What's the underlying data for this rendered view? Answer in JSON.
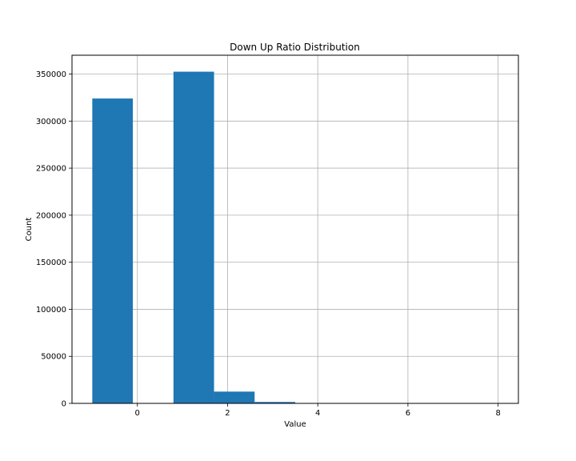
{
  "chart_data": {
    "type": "bar",
    "title": "Down Up Ratio Distribution",
    "xlabel": "Value",
    "ylabel": "Count",
    "xlim": [
      -1.45,
      8.45
    ],
    "ylim": [
      0,
      370000
    ],
    "x_ticks": [
      0,
      2,
      4,
      6,
      8
    ],
    "y_ticks": [
      0,
      50000,
      100000,
      150000,
      200000,
      250000,
      300000,
      350000
    ],
    "grid": true,
    "bar_color": "#1f77b4",
    "bins": [
      {
        "x_start": -1.0,
        "x_end": -0.1,
        "value": 324000
      },
      {
        "x_start": -0.1,
        "x_end": 0.8,
        "value": 0
      },
      {
        "x_start": 0.8,
        "x_end": 1.7,
        "value": 352500
      },
      {
        "x_start": 1.7,
        "x_end": 2.6,
        "value": 12500
      },
      {
        "x_start": 2.6,
        "x_end": 3.5,
        "value": 1500
      },
      {
        "x_start": 3.5,
        "x_end": 4.4,
        "value": 150
      },
      {
        "x_start": 4.4,
        "x_end": 5.3,
        "value": 30
      },
      {
        "x_start": 5.3,
        "x_end": 6.2,
        "value": 10
      },
      {
        "x_start": 6.2,
        "x_end": 7.1,
        "value": 3
      },
      {
        "x_start": 7.1,
        "x_end": 8.0,
        "value": 1
      }
    ]
  }
}
